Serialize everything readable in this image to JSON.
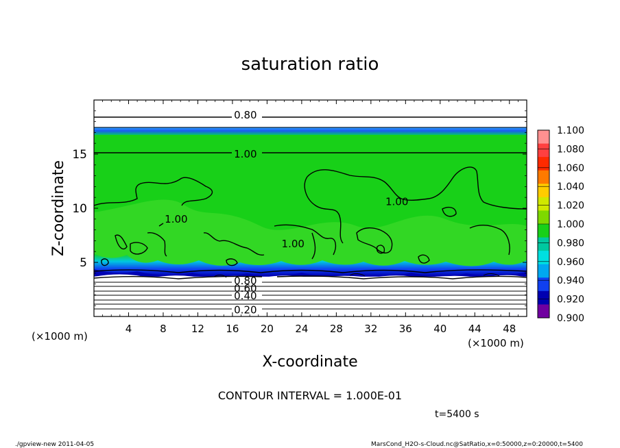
{
  "chart_data": {
    "type": "heatmap",
    "title": "saturation ratio",
    "xlabel": "X-coordinate",
    "ylabel": "Z-coordinate",
    "x_unit_left": "(×1000 m)",
    "x_unit_right": "(×1000 m)",
    "xlim": [
      0,
      50
    ],
    "ylim": [
      0,
      20
    ],
    "x_ticks": [
      "4",
      "8",
      "12",
      "16",
      "20",
      "24",
      "28",
      "32",
      "36",
      "40",
      "44",
      "48"
    ],
    "y_ticks": [
      "5",
      "10",
      "15"
    ],
    "colorbar": {
      "levels": [
        "1.100",
        "1.080",
        "1.060",
        "1.040",
        "1.020",
        "1.000",
        "0.980",
        "0.960",
        "0.940",
        "0.920",
        "0.900"
      ],
      "colors": [
        "#ff9090",
        "#ff4040",
        "#ff2a00",
        "#ff7a00",
        "#ffcc00",
        "#d0e800",
        "#7ed800",
        "#18d018",
        "#00c8a0",
        "#00e0e0",
        "#00a8f0",
        "#1040f0",
        "#0000b0",
        "#7000a0"
      ]
    },
    "contour_labels": [
      {
        "text": "0.80",
        "x": 17.5,
        "z": 18.6
      },
      {
        "text": "1.00",
        "x": 17.5,
        "z": 15.0
      },
      {
        "text": "1.00",
        "x": 9.5,
        "z": 9.0
      },
      {
        "text": "1.00",
        "x": 35.0,
        "z": 10.6
      },
      {
        "text": "1.00",
        "x": 23.0,
        "z": 6.7
      },
      {
        "text": "0.80",
        "x": 17.5,
        "z": 3.3
      },
      {
        "text": "0.60",
        "x": 17.5,
        "z": 2.6
      },
      {
        "text": "0.40",
        "x": 17.5,
        "z": 1.9
      },
      {
        "text": "0.20",
        "x": 17.5,
        "z": 0.6
      }
    ],
    "contour_interval": "CONTOUR INTERVAL = 1.000E-01",
    "time_label": "t=5400 s"
  },
  "footer": {
    "left": "./gpview-new  2011-04-05",
    "right": "MarsCond_H2O-s-Cloud.nc@SatRatio,x=0:50000,z=0:20000,t=5400"
  }
}
